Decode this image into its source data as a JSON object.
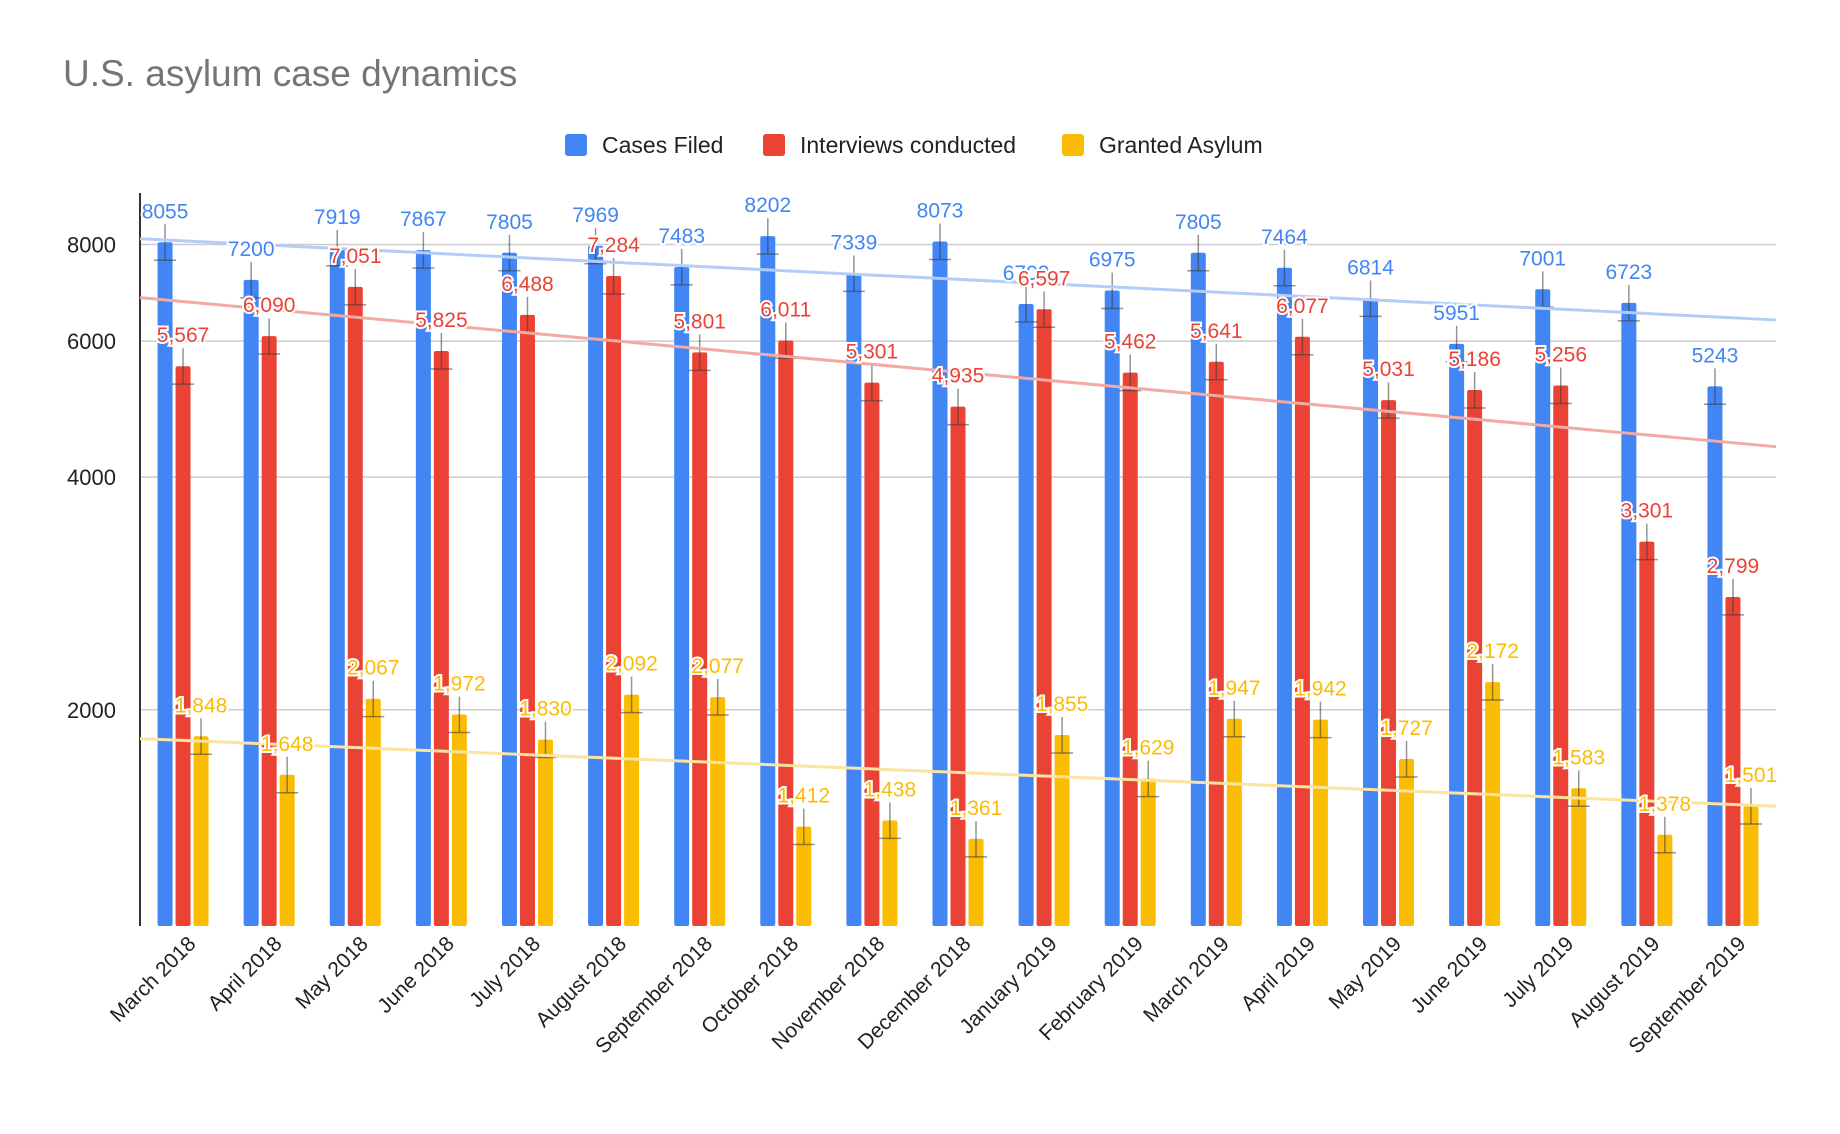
{
  "chart_data": {
    "type": "bar",
    "title": "U.S. asylum case dynamics",
    "xlabel": "",
    "ylabel": "",
    "y_scale": "log",
    "ylim": [
      1050,
      9000
    ],
    "y_ticks": [
      2000,
      4000,
      6000,
      8000
    ],
    "grid": true,
    "legend_position": "top",
    "error_bars": true,
    "trendlines": true,
    "categories": [
      "March 2018",
      "April 2018",
      "May 2018",
      "June 2018",
      "July 2018",
      "August 2018",
      "September 2018",
      "October 2018",
      "November 2018",
      "December 2018",
      "January 2019",
      "February 2019",
      "March 2019",
      "April 2019",
      "May 2019",
      "June 2019",
      "July 2019",
      "August 2019",
      "September 2019"
    ],
    "series": [
      {
        "name": "Cases Filed",
        "color": "#4285f4",
        "trend_color": "#b4cdf8",
        "values": [
          8055,
          7200,
          7919,
          7867,
          7805,
          7969,
          7483,
          8202,
          7339,
          8073,
          6702,
          6975,
          7805,
          7464,
          6814,
          5951,
          7001,
          6723,
          5243
        ],
        "labels": [
          "8055",
          "7200",
          "7919",
          "7867",
          "7805",
          "7969",
          "7483",
          "8202",
          "7339",
          "8073",
          "6702",
          "6975",
          "7805",
          "7464",
          "6814",
          "5951",
          "7001",
          "6723",
          "5243"
        ]
      },
      {
        "name": "Interviews conducted",
        "color": "#ea4335",
        "trend_color": "#f2aaa4",
        "values": [
          5567,
          6090,
          7051,
          5825,
          6488,
          7284,
          5801,
          6011,
          5301,
          4935,
          6597,
          5462,
          5641,
          6077,
          5031,
          5186,
          5256,
          3301,
          2799
        ],
        "labels": [
          "5,567",
          "6,090",
          "7,051",
          "5,825",
          "6,488",
          "7,284",
          "5,801",
          "6,011",
          "5,301",
          "4,935",
          "6,597",
          "5,462",
          "5,641",
          "6,077",
          "5,031",
          "5,186",
          "5,256",
          "3,301",
          "2,799"
        ]
      },
      {
        "name": "Granted Asylum",
        "color": "#fbbc04",
        "trend_color": "#fbe3a0",
        "values": [
          1848,
          1648,
          2067,
          1972,
          1830,
          2092,
          2077,
          1412,
          1438,
          1361,
          1855,
          1629,
          1947,
          1942,
          1727,
          2172,
          1583,
          1378,
          1501
        ],
        "labels": [
          "1,848",
          "1,648",
          "2,067",
          "1,972",
          "1,830",
          "2,092",
          "2,077",
          "1,412",
          "1,438",
          "1,361",
          "1,855",
          "1,629",
          "1,947",
          "1,942",
          "1,727",
          "2,172",
          "1,583",
          "1,378",
          "1,501"
        ]
      }
    ],
    "trendlines_data": [
      {
        "series": "Cases Filed",
        "start": 8140,
        "end": 6390
      },
      {
        "series": "Interviews conducted",
        "start": 6830,
        "end": 4380
      },
      {
        "series": "Granted Asylum",
        "start": 1835,
        "end": 1500
      }
    ],
    "text_color": "#222222",
    "title_color": "#757575",
    "grid_color": "#cccccc"
  }
}
